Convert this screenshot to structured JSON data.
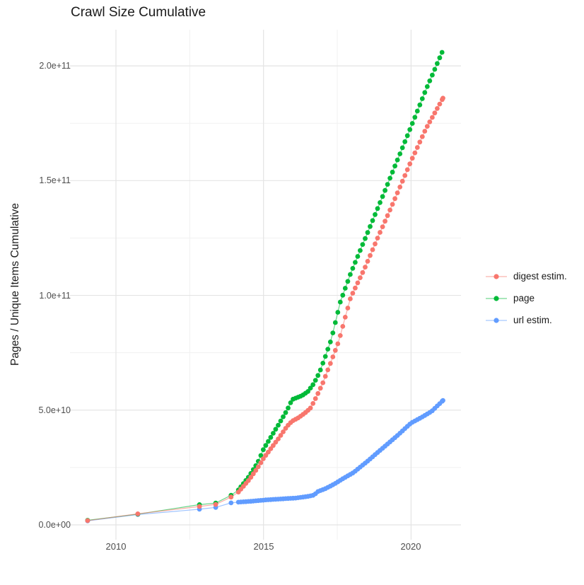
{
  "title": "Crawl Size Cumulative",
  "ylabel": "Pages / Unique Items Cumulative",
  "colors": {
    "background": "#ffffff",
    "grid_major": "#e4e4e4",
    "grid_minor": "#f1f1f1",
    "text_dark": "#1a1a1a",
    "text_tick": "#4d4d4d"
  },
  "legend": [
    {
      "label": "digest estim.",
      "color": "#F8766D",
      "series": "digest"
    },
    {
      "label": "page",
      "color": "#00BA38",
      "series": "page"
    },
    {
      "label": "url estim.",
      "color": "#619CFF",
      "series": "url"
    }
  ],
  "chart_data": {
    "type": "line",
    "subtype": "line-with-points",
    "title": "Crawl Size Cumulative",
    "xlabel": "",
    "ylabel": "Pages / Unique Items Cumulative",
    "grid": true,
    "legend_position": "right",
    "units": "anchor values in 1e9 pages (billions); y axis shown in scientific notation",
    "x_domain": [
      2008.44,
      2021.7
    ],
    "y_domain_e9": [
      -6.5,
      215.7
    ],
    "x_ticks": [
      {
        "value": 2010,
        "label": "2010"
      },
      {
        "value": 2015,
        "label": "2015"
      },
      {
        "value": 2020,
        "label": "2020"
      }
    ],
    "x_minor_ticks": [
      2012.5,
      2017.5
    ],
    "y_ticks": [
      {
        "value_e9": 0,
        "label": "0.0e+00"
      },
      {
        "value_e9": 50,
        "label": "5.0e+10"
      },
      {
        "value_e9": 100,
        "label": "1.0e+11"
      },
      {
        "value_e9": 150,
        "label": "1.5e+11"
      },
      {
        "value_e9": 200,
        "label": "2.0e+11"
      }
    ],
    "y_minor_ticks_e9": [
      25,
      75,
      125,
      175
    ],
    "sparse_until": 2014.1,
    "dense_start": 2014.15,
    "dot_interval_years": 0.0842,
    "series": [
      {
        "name": "url estim.",
        "color": "#619CFF",
        "anchors": [
          [
            2009.04,
            1.75
          ],
          [
            2010.74,
            4.5
          ],
          [
            2012.83,
            6.8
          ],
          [
            2013.38,
            7.6
          ],
          [
            2013.9,
            9.6
          ],
          [
            2014.15,
            9.9
          ],
          [
            2014.6,
            10.3
          ],
          [
            2015.1,
            10.9
          ],
          [
            2015.6,
            11.3
          ],
          [
            2016.1,
            11.7
          ],
          [
            2016.55,
            12.5
          ],
          [
            2016.72,
            13.0
          ],
          [
            2016.82,
            14.4
          ],
          [
            2017.1,
            15.8
          ],
          [
            2017.4,
            17.8
          ],
          [
            2017.7,
            20.2
          ],
          [
            2018.05,
            22.8
          ],
          [
            2018.5,
            27.5
          ],
          [
            2019.0,
            33.0
          ],
          [
            2019.5,
            38.5
          ],
          [
            2020.0,
            44.4
          ],
          [
            2020.35,
            46.8
          ],
          [
            2020.7,
            49.5
          ],
          [
            2021.08,
            54.2
          ]
        ]
      },
      {
        "name": "page",
        "color": "#00BA38",
        "anchors": [
          [
            2009.04,
            2.0
          ],
          [
            2010.74,
            4.7
          ],
          [
            2012.83,
            8.8
          ],
          [
            2013.38,
            9.5
          ],
          [
            2013.9,
            12.9
          ],
          [
            2014.15,
            15.2
          ],
          [
            2014.5,
            21.0
          ],
          [
            2014.8,
            27.0
          ],
          [
            2015.0,
            33.0
          ],
          [
            2015.5,
            43.5
          ],
          [
            2015.8,
            50.0
          ],
          [
            2015.97,
            54.6
          ],
          [
            2016.3,
            56.3
          ],
          [
            2016.5,
            58.0
          ],
          [
            2016.7,
            61.5
          ],
          [
            2016.9,
            66.5
          ],
          [
            2017.1,
            73.5
          ],
          [
            2017.3,
            81.0
          ],
          [
            2017.6,
            97.0
          ],
          [
            2017.95,
            109.5
          ],
          [
            2018.5,
            126.5
          ],
          [
            2019.0,
            142.0
          ],
          [
            2019.5,
            157.8
          ],
          [
            2020.0,
            173.5
          ],
          [
            2020.5,
            189.5
          ],
          [
            2021.05,
            205.9
          ]
        ]
      },
      {
        "name": "digest estim.",
        "color": "#F8766D",
        "anchors": [
          [
            2009.04,
            1.85
          ],
          [
            2010.74,
            4.8
          ],
          [
            2012.83,
            8.0
          ],
          [
            2013.38,
            8.9
          ],
          [
            2013.9,
            12.1
          ],
          [
            2014.15,
            14.3
          ],
          [
            2014.5,
            19.5
          ],
          [
            2014.8,
            24.8
          ],
          [
            2015.0,
            29.0
          ],
          [
            2015.5,
            37.5
          ],
          [
            2015.8,
            43.0
          ],
          [
            2015.97,
            45.2
          ],
          [
            2016.2,
            46.8
          ],
          [
            2016.45,
            49.2
          ],
          [
            2016.6,
            51.0
          ],
          [
            2016.8,
            56.0
          ],
          [
            2017.0,
            61.5
          ],
          [
            2017.3,
            71.5
          ],
          [
            2017.55,
            80.0
          ],
          [
            2017.95,
            99.0
          ],
          [
            2018.4,
            111.0
          ],
          [
            2018.9,
            126.0
          ],
          [
            2019.4,
            140.5
          ],
          [
            2020.0,
            158.5
          ],
          [
            2020.5,
            172.5
          ],
          [
            2021.08,
            185.9
          ]
        ]
      }
    ]
  }
}
